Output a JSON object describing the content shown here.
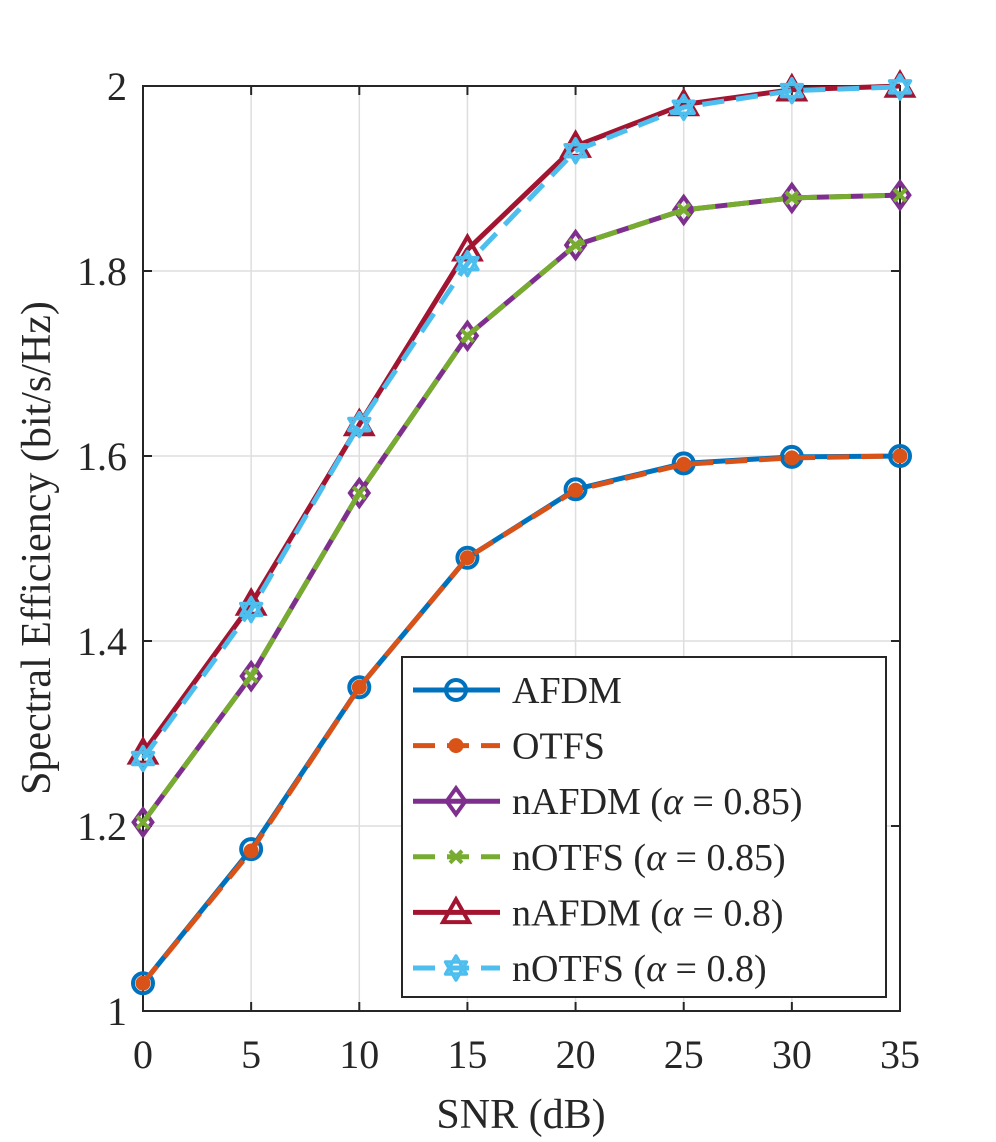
{
  "chart_data": {
    "type": "line",
    "title": "",
    "xlabel": "SNR (dB)",
    "ylabel": "Spectral Efficiency (bit/s/Hz)",
    "x": [
      0,
      5,
      10,
      15,
      20,
      25,
      30,
      35
    ],
    "xlim": [
      0,
      35
    ],
    "ylim": [
      1,
      2
    ],
    "xticks": [
      0,
      5,
      10,
      15,
      20,
      25,
      30,
      35
    ],
    "yticks": [
      1,
      1.2,
      1.4,
      1.6,
      1.8,
      2
    ],
    "xtick_labels": [
      "0",
      "5",
      "10",
      "15",
      "20",
      "25",
      "30",
      "35"
    ],
    "ytick_labels": [
      "1",
      "1.2",
      "1.4",
      "1.6",
      "1.8",
      "2"
    ],
    "grid": true,
    "legend_position": "bottom-right",
    "series": [
      {
        "name": "AFDM",
        "label_prefix": "AFDM",
        "label_param": "",
        "color": "#0072BD",
        "dash": "solid",
        "marker": "circle",
        "values": [
          1.03,
          1.175,
          1.35,
          1.49,
          1.564,
          1.592,
          1.599,
          1.6
        ]
      },
      {
        "name": "OTFS",
        "label_prefix": "OTFS",
        "label_param": "",
        "color": "#D95319",
        "dash": "dashed",
        "marker": "dot",
        "values": [
          1.03,
          1.173,
          1.35,
          1.49,
          1.563,
          1.591,
          1.598,
          1.6
        ]
      },
      {
        "name": "nAFDM (α = 0.85)",
        "label_prefix": "nAFDM (",
        "label_param": " = 0.85)",
        "color": "#7E2F8E",
        "dash": "solid",
        "marker": "diamond",
        "values": [
          1.204,
          1.362,
          1.56,
          1.73,
          1.828,
          1.866,
          1.879,
          1.882
        ]
      },
      {
        "name": "nOTFS (α = 0.85)",
        "label_prefix": "nOTFS (",
        "label_param": " = 0.85)",
        "color": "#77AC30",
        "dash": "dashed",
        "marker": "x",
        "values": [
          1.204,
          1.362,
          1.56,
          1.73,
          1.828,
          1.866,
          1.879,
          1.882
        ]
      },
      {
        "name": "nAFDM (α = 0.8)",
        "label_prefix": "nAFDM (",
        "label_param": " = 0.8)",
        "color": "#A2142F",
        "dash": "solid",
        "marker": "triangle",
        "values": [
          1.279,
          1.44,
          1.634,
          1.823,
          1.935,
          1.98,
          1.996,
          2.0
        ]
      },
      {
        "name": "nOTFS (α = 0.8)",
        "label_prefix": "nOTFS (",
        "label_param": " = 0.8)",
        "color": "#4DBEEE",
        "dash": "dashed",
        "marker": "hexagram",
        "values": [
          1.273,
          1.434,
          1.634,
          1.808,
          1.93,
          1.977,
          1.995,
          1.999
        ]
      }
    ],
    "greek_symbol": "α"
  }
}
